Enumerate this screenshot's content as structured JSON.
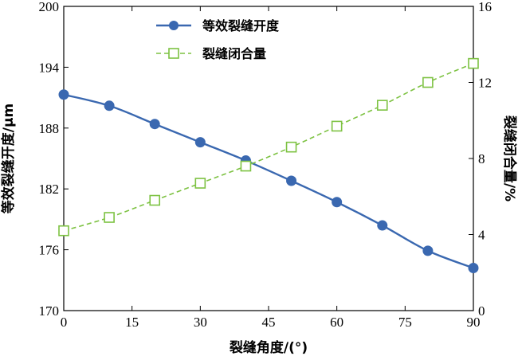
{
  "chart_data": {
    "type": "line",
    "x": [
      0,
      10,
      20,
      30,
      40,
      50,
      60,
      70,
      80,
      90
    ],
    "xlabel": "裂缝角度/(°)",
    "xlim": [
      0,
      90
    ],
    "xticks": [
      0,
      15,
      30,
      45,
      60,
      75,
      90
    ],
    "ylabel_left": "等效裂缝开度/μm",
    "ylim_left": [
      170,
      200
    ],
    "yticks_left": [
      170,
      176,
      182,
      188,
      194,
      200
    ],
    "ylabel_right": "裂缝闭合量/%",
    "ylim_right": [
      0,
      16
    ],
    "yticks_right": [
      0,
      4,
      8,
      12,
      16
    ],
    "grid": false,
    "legend_position": "top-center",
    "series": [
      {
        "name": "等效裂缝开度",
        "axis": "left",
        "values": [
          191.3,
          190.2,
          188.4,
          186.6,
          184.8,
          182.8,
          180.7,
          178.4,
          175.9,
          174.2
        ],
        "color": "#3a68b0",
        "marker": "circle",
        "line_style": "solid"
      },
      {
        "name": "裂缝闭合量",
        "axis": "right",
        "values": [
          4.2,
          4.9,
          5.8,
          6.7,
          7.6,
          8.6,
          9.7,
          10.8,
          12.0,
          13.0
        ],
        "color": "#7dc242",
        "marker": "square-open",
        "line_style": "dashed"
      }
    ]
  }
}
